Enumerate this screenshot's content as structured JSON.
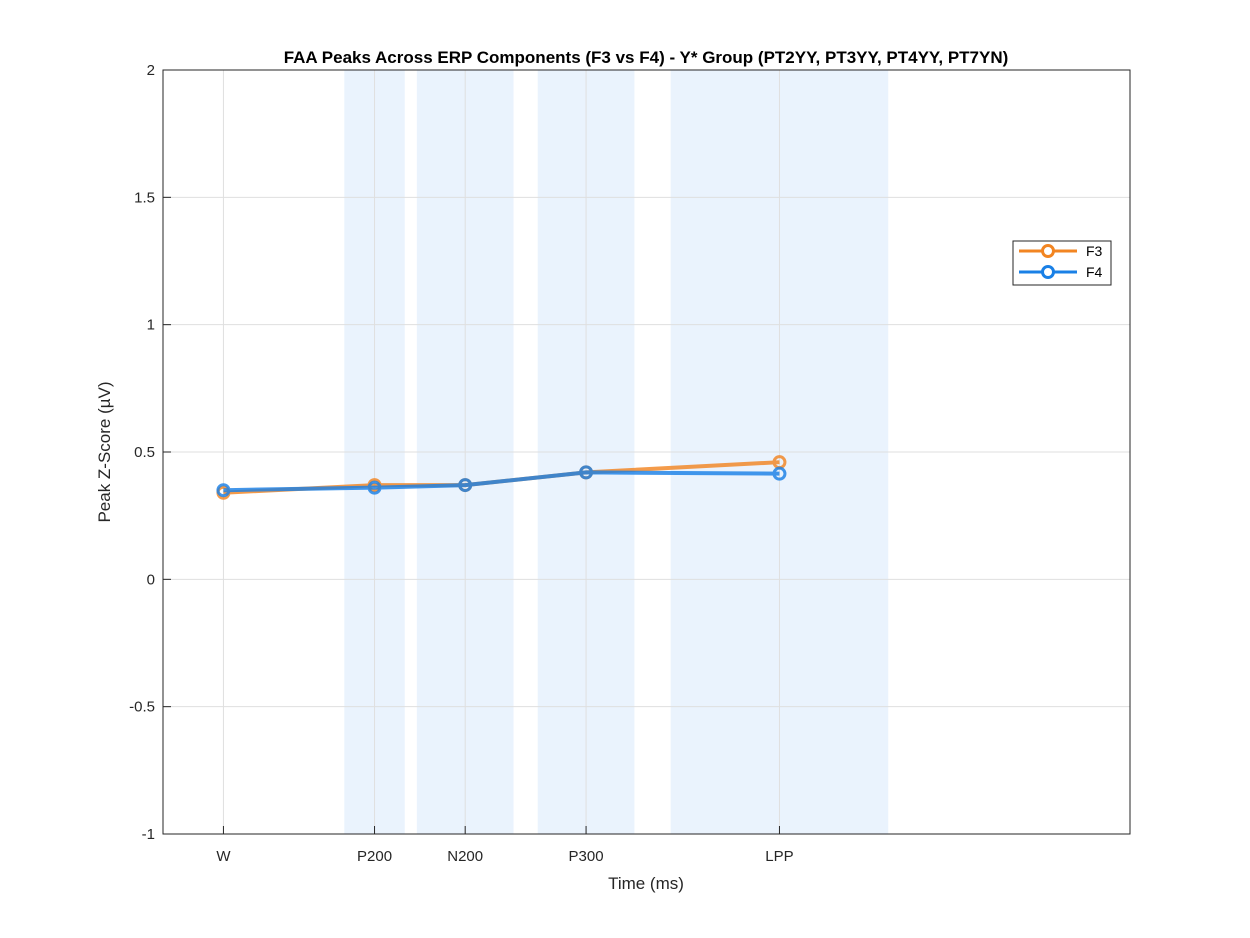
{
  "chart_data": {
    "type": "line",
    "title": "FAA Peaks Across ERP Components (F3 vs F4) - Y* Group (PT2YY, PT3YY, PT4YY, PT7YN)",
    "xlabel": "Time (ms)",
    "ylabel": "Peak Z-Score (µV)",
    "categories": [
      "W",
      "P200",
      "N200",
      "P300",
      "LPP"
    ],
    "x": [
      0,
      250,
      400,
      600,
      920
    ],
    "xlim": [
      -100,
      1500
    ],
    "ylim": [
      -1,
      2
    ],
    "yticks": [
      -1,
      -0.5,
      0,
      0.5,
      1,
      1.5,
      2
    ],
    "ytick_labels": [
      "-1",
      "-0.5",
      "0",
      "0.5",
      "1",
      "1.5",
      "2"
    ],
    "shaded_windows": [
      [
        200,
        300
      ],
      [
        320,
        480
      ],
      [
        520,
        680
      ],
      [
        740,
        1100
      ]
    ],
    "grid": true,
    "legend_position": "upper-right",
    "series": [
      {
        "name": "F3",
        "color": "#F28522",
        "values": [
          0.34,
          0.37,
          0.37,
          0.42,
          0.46
        ]
      },
      {
        "name": "F4",
        "color": "#1A80E6",
        "values": [
          0.35,
          0.36,
          0.37,
          0.42,
          0.415
        ]
      }
    ],
    "shade_color": "#EAF3FD",
    "grid_color": "#DFDFDF"
  }
}
